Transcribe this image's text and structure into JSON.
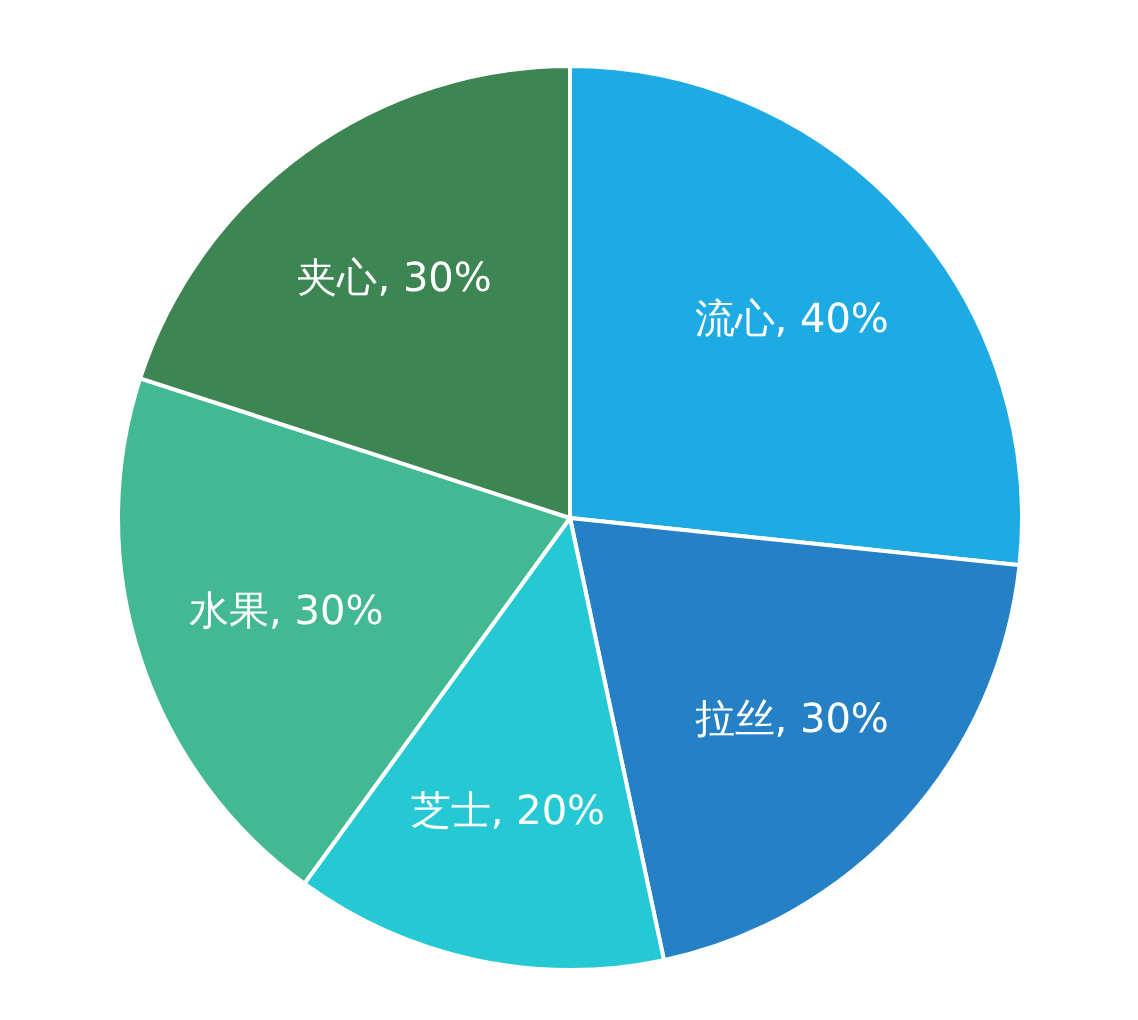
{
  "chart_data": {
    "type": "pie",
    "categories": [
      "流心",
      "拉丝",
      "芝士",
      "水果",
      "夹心"
    ],
    "values": [
      40,
      30,
      20,
      30,
      30
    ],
    "colors": [
      "#1eaae2",
      "#2680c5",
      "#25c9d4",
      "#42b893",
      "#3d8654"
    ],
    "value_labels": [
      "40%",
      "30%",
      "20%",
      "30%",
      "30%"
    ]
  }
}
